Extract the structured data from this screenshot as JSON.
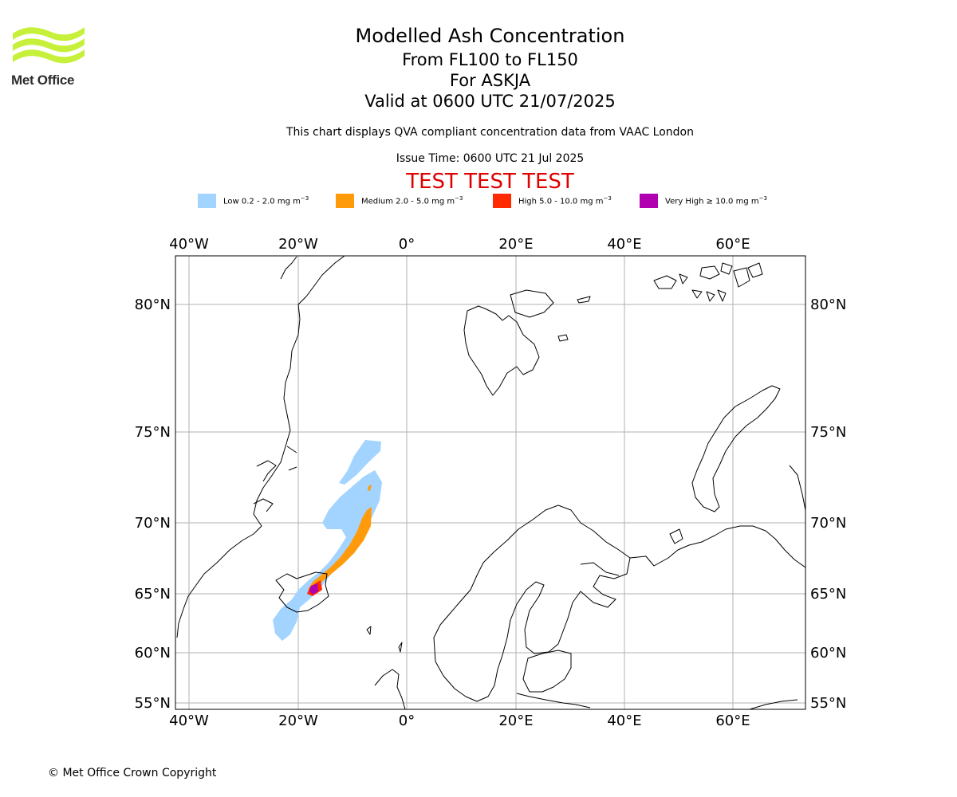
{
  "logo": {
    "text": "Met Office",
    "color": "#c6f03a"
  },
  "title": {
    "line1": "Modelled Ash Concentration",
    "line2": "From FL100 to FL150",
    "line3": "For ASKJA",
    "line4": "Valid at 0600 UTC 21/07/2025"
  },
  "subtitle": "This chart displays QVA compliant concentration data from VAAC London",
  "issue_time": "Issue Time: 0600 UTC 21 Jul 2025",
  "test_banner": "TEST TEST TEST",
  "legend": [
    {
      "label": "Low 0.2 - 2.0 mg m",
      "color": "#a3d4ff"
    },
    {
      "label": "Medium 2.0 - 5.0 mg m",
      "color": "#ff9b0a"
    },
    {
      "label": "High 5.0 - 10.0 mg m",
      "color": "#ff2a00"
    },
    {
      "label": "Very High  ≥  10.0 mg m",
      "color": "#b000b0"
    }
  ],
  "legend_unit_exponent": "−3",
  "map": {
    "longitude_labels": [
      "40°W",
      "20°W",
      "0°",
      "20°E",
      "40°E",
      "60°E"
    ],
    "latitude_labels": [
      "80°N",
      "75°N",
      "70°N",
      "65°N",
      "60°N",
      "55°N"
    ],
    "land_outline_color": "#000000",
    "grid_color": "#b0b0b0"
  },
  "copyright": "© Met Office Crown Copyright"
}
